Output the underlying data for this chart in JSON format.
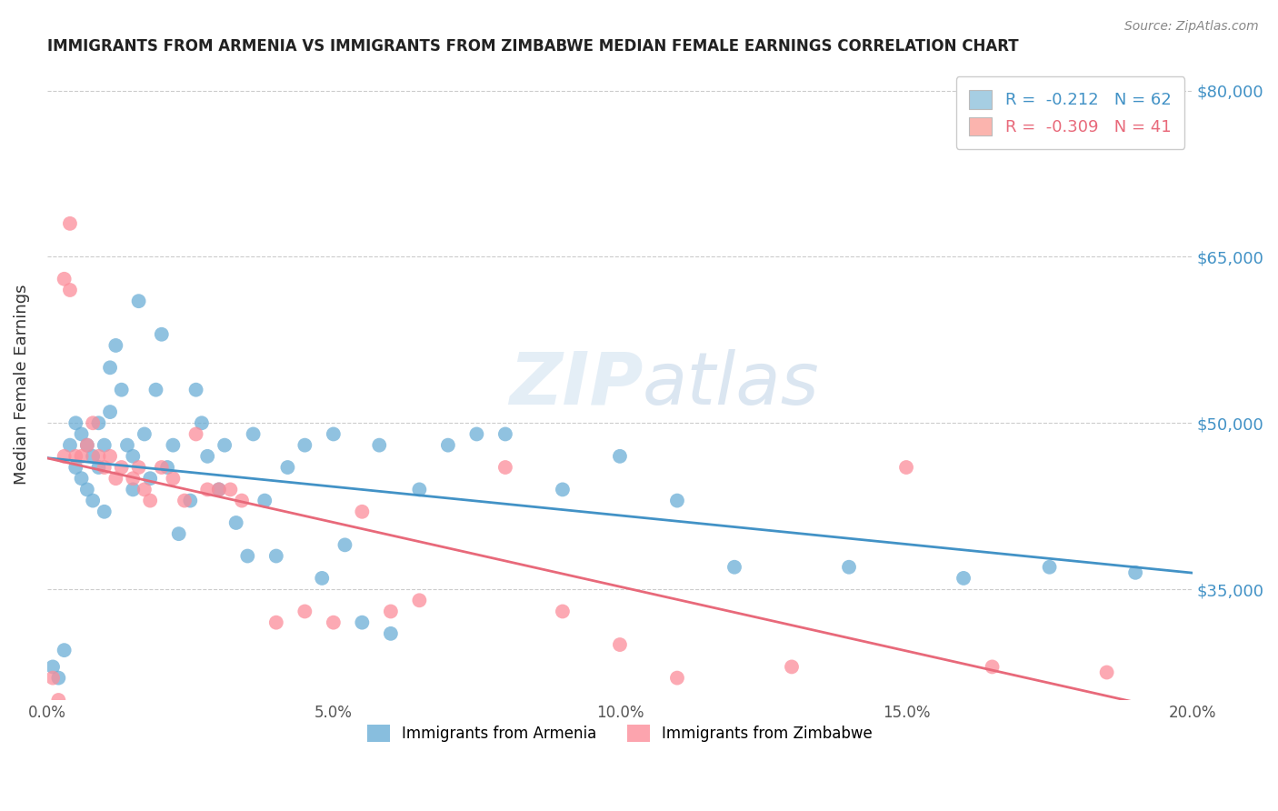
{
  "title": "IMMIGRANTS FROM ARMENIA VS IMMIGRANTS FROM ZIMBABWE MEDIAN FEMALE EARNINGS CORRELATION CHART",
  "source": "Source: ZipAtlas.com",
  "ylabel": "Median Female Earnings",
  "x_min": 0.0,
  "x_max": 0.2,
  "y_min": 25000,
  "y_max": 82000,
  "ytick_labels": [
    "$35,000",
    "$50,000",
    "$65,000",
    "$80,000"
  ],
  "ytick_values": [
    35000,
    50000,
    65000,
    80000
  ],
  "xtick_labels": [
    "0.0%",
    "5.0%",
    "10.0%",
    "15.0%",
    "20.0%"
  ],
  "xtick_values": [
    0.0,
    0.05,
    0.1,
    0.15,
    0.2
  ],
  "armenia_color": "#6baed6",
  "zimbabwe_color": "#fc8d9a",
  "armenia_line_color": "#4292c6",
  "zimbabwe_line_color": "#e8697a",
  "legend_box_armenia": "#a6cee3",
  "legend_box_zimbabwe": "#fbb4ae",
  "R_armenia": -0.212,
  "N_armenia": 62,
  "R_zimbabwe": -0.309,
  "N_zimbabwe": 41,
  "background_color": "#ffffff",
  "armenia_scatter_x": [
    0.001,
    0.002,
    0.003,
    0.004,
    0.005,
    0.005,
    0.006,
    0.006,
    0.007,
    0.007,
    0.008,
    0.008,
    0.009,
    0.009,
    0.01,
    0.01,
    0.011,
    0.011,
    0.012,
    0.013,
    0.014,
    0.015,
    0.015,
    0.016,
    0.017,
    0.018,
    0.019,
    0.02,
    0.021,
    0.022,
    0.023,
    0.025,
    0.026,
    0.027,
    0.028,
    0.03,
    0.031,
    0.033,
    0.035,
    0.036,
    0.038,
    0.04,
    0.042,
    0.045,
    0.048,
    0.05,
    0.052,
    0.055,
    0.058,
    0.06,
    0.065,
    0.07,
    0.075,
    0.08,
    0.09,
    0.1,
    0.11,
    0.12,
    0.14,
    0.16,
    0.175,
    0.19
  ],
  "armenia_scatter_y": [
    28000,
    27000,
    29500,
    48000,
    50000,
    46000,
    49000,
    45000,
    48000,
    44000,
    47000,
    43000,
    50000,
    46000,
    48000,
    42000,
    51000,
    55000,
    57000,
    53000,
    48000,
    47000,
    44000,
    61000,
    49000,
    45000,
    53000,
    58000,
    46000,
    48000,
    40000,
    43000,
    53000,
    50000,
    47000,
    44000,
    48000,
    41000,
    38000,
    49000,
    43000,
    38000,
    46000,
    48000,
    36000,
    49000,
    39000,
    32000,
    48000,
    31000,
    44000,
    48000,
    49000,
    49000,
    44000,
    47000,
    43000,
    37000,
    37000,
    36000,
    37000,
    36500
  ],
  "zimbabwe_scatter_x": [
    0.001,
    0.002,
    0.003,
    0.003,
    0.004,
    0.004,
    0.005,
    0.006,
    0.007,
    0.008,
    0.009,
    0.01,
    0.011,
    0.012,
    0.013,
    0.015,
    0.016,
    0.017,
    0.018,
    0.02,
    0.022,
    0.024,
    0.026,
    0.028,
    0.03,
    0.032,
    0.034,
    0.04,
    0.045,
    0.05,
    0.055,
    0.06,
    0.065,
    0.08,
    0.09,
    0.1,
    0.11,
    0.13,
    0.15,
    0.165,
    0.185
  ],
  "zimbabwe_scatter_y": [
    27000,
    25000,
    63000,
    47000,
    68000,
    62000,
    47000,
    47000,
    48000,
    50000,
    47000,
    46000,
    47000,
    45000,
    46000,
    45000,
    46000,
    44000,
    43000,
    46000,
    45000,
    43000,
    49000,
    44000,
    44000,
    44000,
    43000,
    32000,
    33000,
    32000,
    42000,
    33000,
    34000,
    46000,
    33000,
    30000,
    27000,
    28000,
    46000,
    28000,
    27500
  ]
}
